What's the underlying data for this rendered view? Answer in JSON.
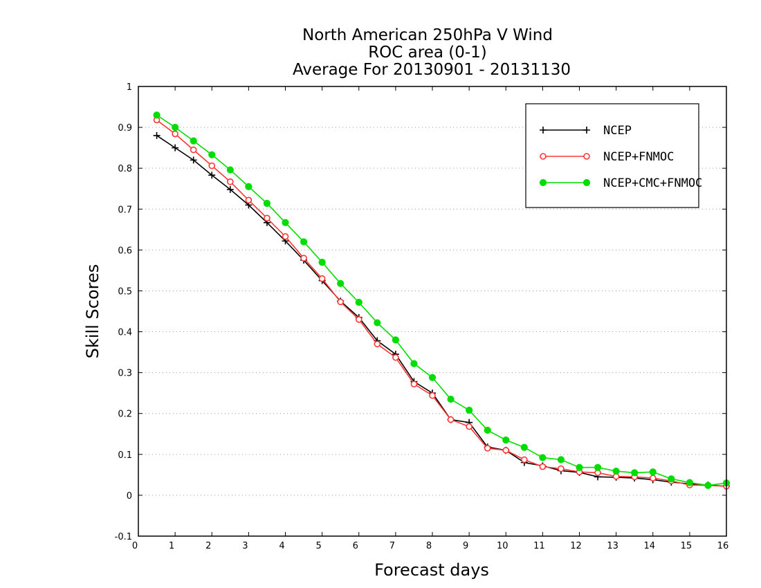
{
  "chart_data": {
    "type": "line",
    "title": [
      "North American 250hPa V Wind",
      "ROC area (0-1)",
      "Average For 20130901 - 20131130"
    ],
    "xlabel": "Forecast days",
    "ylabel": "Skill Scores",
    "xlim": [
      0,
      16
    ],
    "ylim": [
      -0.1,
      1
    ],
    "xticks": [
      "0",
      "1",
      "2",
      "3",
      "4",
      "5",
      "6",
      "7",
      "8",
      "9",
      "10",
      "11",
      "12",
      "13",
      "14",
      "15",
      "16"
    ],
    "yticks": [
      "-0.1",
      "0",
      "0.1",
      "0.2",
      "0.3",
      "0.4",
      "0.5",
      "0.6",
      "0.7",
      "0.8",
      "0.9",
      "1"
    ],
    "grid": "horizontal dotted",
    "legend_position": "top-right",
    "x": [
      0.5,
      1,
      1.5,
      2,
      2.5,
      3,
      3.5,
      4,
      4.5,
      5,
      5.5,
      6,
      6.5,
      7,
      7.5,
      8,
      8.5,
      9,
      9.5,
      10,
      10.5,
      11,
      11.5,
      12,
      12.5,
      13,
      13.5,
      14,
      14.5,
      15,
      15.5,
      16
    ],
    "series": [
      {
        "name": "NCEP",
        "color": "#000000",
        "marker": "plus",
        "values": [
          0.88,
          0.85,
          0.82,
          0.783,
          0.748,
          0.71,
          0.667,
          0.622,
          0.575,
          0.525,
          0.475,
          0.435,
          0.378,
          0.345,
          0.278,
          0.25,
          0.185,
          0.178,
          0.118,
          0.11,
          0.08,
          0.072,
          0.06,
          0.056,
          0.045,
          0.044,
          0.042,
          0.038,
          0.032,
          0.028,
          0.025,
          0.022
        ]
      },
      {
        "name": "NCEP+FNMOC",
        "color": "#ff3333",
        "marker": "open-circle",
        "values": [
          0.918,
          0.884,
          0.845,
          0.806,
          0.767,
          0.722,
          0.678,
          0.633,
          0.58,
          0.53,
          0.473,
          0.43,
          0.37,
          0.337,
          0.272,
          0.244,
          0.185,
          0.168,
          0.115,
          0.11,
          0.087,
          0.07,
          0.065,
          0.057,
          0.055,
          0.046,
          0.045,
          0.042,
          0.035,
          0.025,
          0.024,
          0.022
        ]
      },
      {
        "name": "NCEP+CMC+FNMOC",
        "color": "#00dd00",
        "marker": "filled-circle",
        "values": [
          0.93,
          0.9,
          0.867,
          0.833,
          0.796,
          0.755,
          0.714,
          0.667,
          0.62,
          0.57,
          0.518,
          0.472,
          0.422,
          0.38,
          0.322,
          0.288,
          0.235,
          0.208,
          0.159,
          0.135,
          0.117,
          0.092,
          0.087,
          0.068,
          0.068,
          0.059,
          0.055,
          0.057,
          0.04,
          0.031,
          0.024,
          0.03
        ]
      }
    ]
  }
}
